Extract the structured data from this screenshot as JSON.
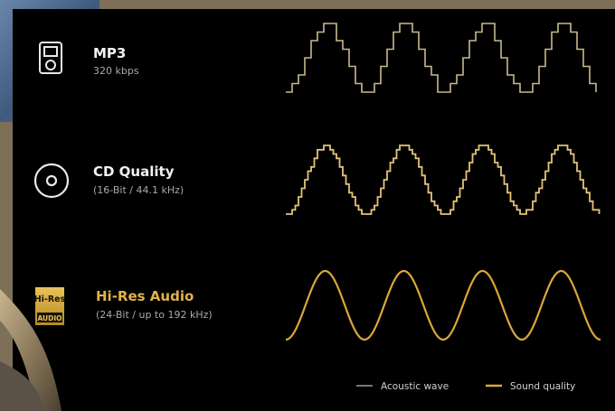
{
  "rows": [
    {
      "title": "MP3",
      "subtitle": "320 kbps"
    },
    {
      "title": "CD Quality",
      "subtitle": "(16-Bit / 44.1 kHz)"
    },
    {
      "title": "Hi-Res Audio",
      "subtitle": "(24-Bit / up to 192 kHz)"
    }
  ],
  "badge": {
    "top": "Hi-Res",
    "bottom": "AUDIO"
  },
  "legend": [
    {
      "label": "Acoustic wave"
    },
    {
      "label": "Sound quality"
    }
  ]
}
